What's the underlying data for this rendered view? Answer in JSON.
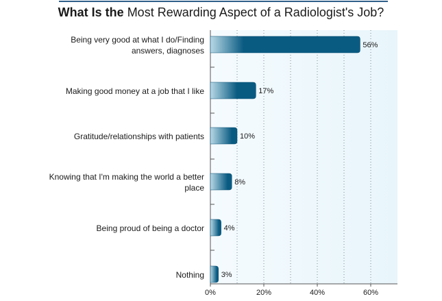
{
  "title": {
    "bold": "What Is the",
    "rest": "Most Rewarding Aspect of a Radiologist's Job?"
  },
  "colors": {
    "bar_dark": "#0a5b82",
    "bar_light": "#b8d9e6",
    "plot_bg_light": "#f5fbfe",
    "plot_bg_right": "#e8f5fb",
    "grid": "#7a8a90",
    "axis": "#555555",
    "title_rule": "#2f5f8a"
  },
  "chart_data": {
    "type": "bar",
    "orientation": "horizontal",
    "title": "What Is the Most Rewarding Aspect of a Radiologist's Job?",
    "categories": [
      "Being very good at what I do/Finding answers, diagnoses",
      "Making good money at a job that I like",
      "Gratitude/relationships with patients",
      "Knowing that I'm making the world a better place",
      "Being proud of being a doctor",
      "Nothing"
    ],
    "category_lines": [
      [
        "Being very good at what I do/Finding",
        "answers, diagnoses"
      ],
      [
        "Making good money at a job that I like"
      ],
      [
        "Gratitude/relationships with patients"
      ],
      [
        "Knowing that I'm making the world a better",
        "place"
      ],
      [
        "Being proud of being a doctor"
      ],
      [
        "Nothing"
      ]
    ],
    "values": [
      56,
      17,
      10,
      8,
      4,
      3
    ],
    "value_labels": [
      "56%",
      "17%",
      "10%",
      "8%",
      "4%",
      "3%"
    ],
    "xlim": [
      0,
      70
    ],
    "x_ticks": [
      0,
      20,
      40,
      60
    ],
    "x_tick_labels": [
      "0%",
      "20%",
      "40%",
      "60%"
    ],
    "grid": true,
    "xlabel": "",
    "ylabel": ""
  }
}
